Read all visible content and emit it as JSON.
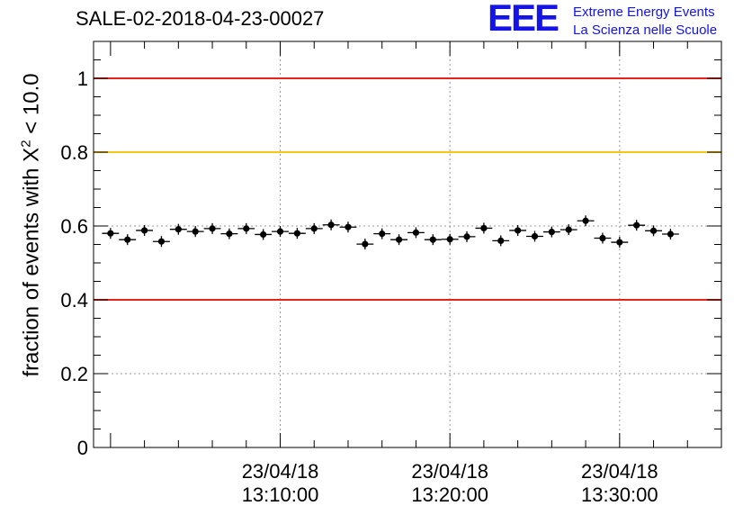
{
  "header": {
    "title": "SALE-02-2018-04-23-00027",
    "logo_mark": "EEE",
    "logo_line1": "Extreme Energy Events",
    "logo_line2": "La Scienza nelle Scuole"
  },
  "chart_data": {
    "type": "scatter",
    "title": "SALE-02-2018-04-23-00027",
    "ylabel_prefix": "fraction of events with X",
    "ylabel_sup": "2",
    "ylabel_suffix": " < 10.0",
    "xlabel": "",
    "ylim": [
      0,
      1.1
    ],
    "grid": true,
    "y_ticks": [
      {
        "value": 0,
        "label": "0"
      },
      {
        "value": 0.2,
        "label": "0.2"
      },
      {
        "value": 0.4,
        "label": "0.4"
      },
      {
        "value": 0.6,
        "label": "0.6"
      },
      {
        "value": 0.8,
        "label": "0.8"
      },
      {
        "value": 1.0,
        "label": "1"
      }
    ],
    "x_range": [
      "12:59:00",
      "13:36:00"
    ],
    "x_ticks": [
      {
        "value": "13:10:00",
        "date": "23/04/18",
        "time": "13:10:00"
      },
      {
        "value": "13:20:00",
        "date": "23/04/18",
        "time": "13:20:00"
      },
      {
        "value": "13:30:00",
        "date": "23/04/18",
        "time": "13:30:00"
      }
    ],
    "reference_lines": [
      {
        "y": 1.0,
        "color": "#e8231b"
      },
      {
        "y": 0.8,
        "color": "#f5c518"
      },
      {
        "y": 0.4,
        "color": "#e8231b"
      }
    ],
    "points": [
      {
        "x": "13:00:00",
        "y": 0.58
      },
      {
        "x": "13:01:00",
        "y": 0.563
      },
      {
        "x": "13:02:00",
        "y": 0.588
      },
      {
        "x": "13:03:00",
        "y": 0.558
      },
      {
        "x": "13:04:00",
        "y": 0.591
      },
      {
        "x": "13:05:00",
        "y": 0.585
      },
      {
        "x": "13:06:00",
        "y": 0.593
      },
      {
        "x": "13:07:00",
        "y": 0.579
      },
      {
        "x": "13:08:00",
        "y": 0.593
      },
      {
        "x": "13:09:00",
        "y": 0.577
      },
      {
        "x": "13:10:00",
        "y": 0.585
      },
      {
        "x": "13:11:00",
        "y": 0.58
      },
      {
        "x": "13:12:00",
        "y": 0.593
      },
      {
        "x": "13:13:00",
        "y": 0.603
      },
      {
        "x": "13:14:00",
        "y": 0.597
      },
      {
        "x": "13:15:00",
        "y": 0.551
      },
      {
        "x": "13:16:00",
        "y": 0.579
      },
      {
        "x": "13:17:00",
        "y": 0.563
      },
      {
        "x": "13:18:00",
        "y": 0.582
      },
      {
        "x": "13:19:00",
        "y": 0.563
      },
      {
        "x": "13:20:00",
        "y": 0.564
      },
      {
        "x": "13:21:00",
        "y": 0.571
      },
      {
        "x": "13:22:00",
        "y": 0.594
      },
      {
        "x": "13:23:00",
        "y": 0.56
      },
      {
        "x": "13:24:00",
        "y": 0.588
      },
      {
        "x": "13:25:00",
        "y": 0.572
      },
      {
        "x": "13:26:00",
        "y": 0.584
      },
      {
        "x": "13:27:00",
        "y": 0.59
      },
      {
        "x": "13:28:00",
        "y": 0.614
      },
      {
        "x": "13:29:00",
        "y": 0.567
      },
      {
        "x": "13:30:00",
        "y": 0.556
      },
      {
        "x": "13:31:00",
        "y": 0.602
      },
      {
        "x": "13:32:00",
        "y": 0.587
      },
      {
        "x": "13:33:00",
        "y": 0.578
      }
    ]
  }
}
